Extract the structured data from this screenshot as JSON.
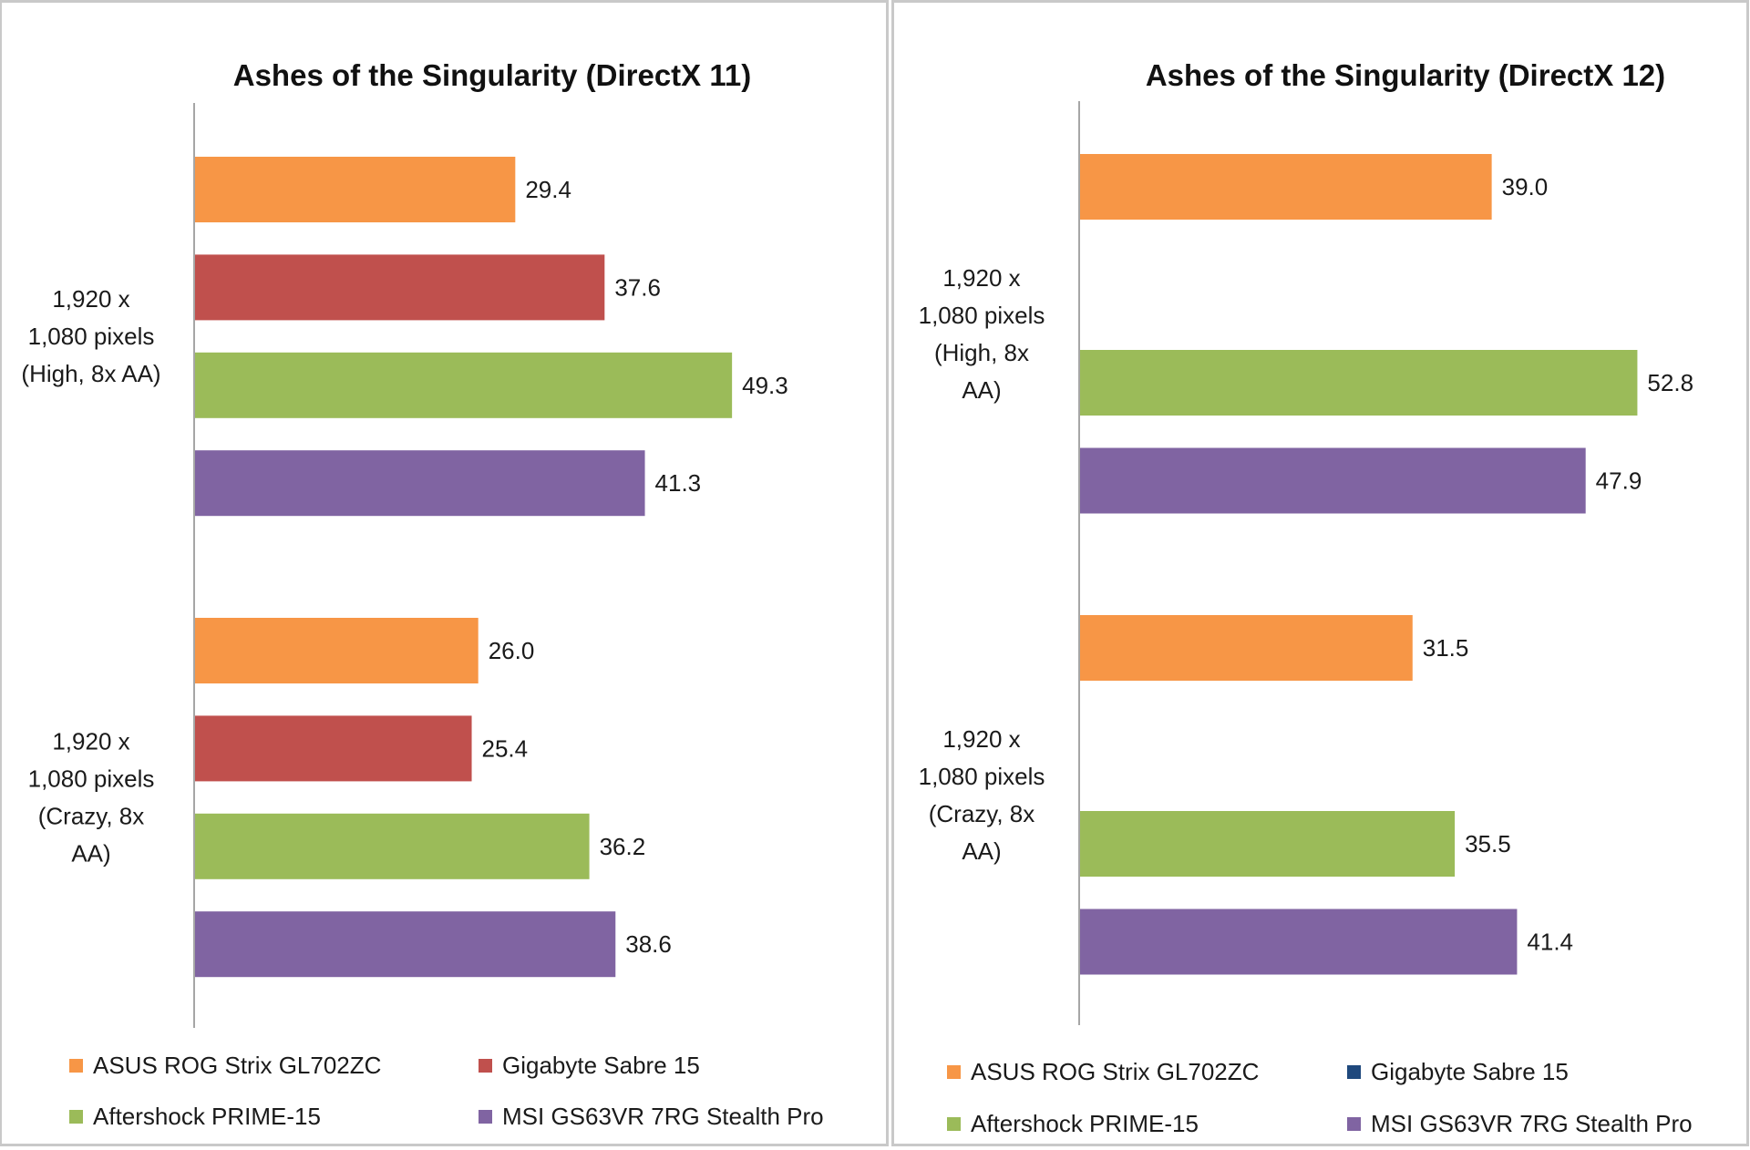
{
  "chart_data": [
    {
      "type": "bar",
      "orientation": "horizontal",
      "title": "Ashes of the Singularity (DirectX 11)",
      "xlabel": "",
      "ylabel": "",
      "grid": false,
      "value_axis_visible": false,
      "xlim": [
        0,
        63
      ],
      "categories": [
        "1,920 x 1,080 pixels (High, 8x AA)",
        "1,920 x 1,080 pixels (Crazy, 8x AA)"
      ],
      "category_label_lines": [
        [
          "1,920 x",
          "1,080 pixels",
          "(High, 8x AA)"
        ],
        [
          "1,920 x",
          "1,080 pixels",
          "(Crazy, 8x",
          "AA)"
        ]
      ],
      "series": [
        {
          "name": "ASUS ROG Strix GL702ZC",
          "color": "#f79646",
          "values": [
            29.4,
            26.0
          ],
          "labels": [
            "29.4",
            "26.0"
          ]
        },
        {
          "name": "Gigabyte Sabre 15",
          "color": "#c0504d",
          "values": [
            37.6,
            25.4
          ],
          "labels": [
            "37.6",
            "25.4"
          ]
        },
        {
          "name": "Aftershock PRIME-15",
          "color": "#9bbb59",
          "values": [
            49.3,
            36.2
          ],
          "labels": [
            "49.3",
            "36.2"
          ]
        },
        {
          "name": "MSI GS63VR 7RG Stealth Pro",
          "color": "#8064a2",
          "values": [
            41.3,
            38.6
          ],
          "labels": [
            "41.3",
            "38.6"
          ]
        }
      ],
      "legend": {
        "position": "bottom",
        "items": [
          {
            "name": "ASUS ROG Strix GL702ZC",
            "color": "#f79646"
          },
          {
            "name": "Gigabyte Sabre 15",
            "color": "#c0504d"
          },
          {
            "name": "Aftershock PRIME-15",
            "color": "#9bbb59"
          },
          {
            "name": "MSI GS63VR 7RG Stealth Pro",
            "color": "#8064a2"
          }
        ]
      }
    },
    {
      "type": "bar",
      "orientation": "horizontal",
      "title": "Ashes of the Singularity (DirectX 12)",
      "xlabel": "",
      "ylabel": "",
      "grid": false,
      "value_axis_visible": false,
      "xlim": [
        0,
        63
      ],
      "categories": [
        "1,920 x 1,080 pixels (High, 8x AA)",
        "1,920 x 1,080 pixels (Crazy, 8x AA)"
      ],
      "category_label_lines": [
        [
          "1,920 x",
          "1,080 pixels",
          "(High, 8x",
          "AA)"
        ],
        [
          "1,920 x",
          "1,080 pixels",
          "(Crazy, 8x",
          "AA)"
        ]
      ],
      "series": [
        {
          "name": "ASUS ROG Strix GL702ZC",
          "color": "#f79646",
          "values": [
            39.0,
            31.5
          ],
          "labels": [
            "39.0",
            "31.5"
          ]
        },
        {
          "name": "Gigabyte Sabre 15",
          "color": "#1f497d",
          "values": [
            null,
            null
          ],
          "labels": [
            null,
            null
          ]
        },
        {
          "name": "Aftershock PRIME-15",
          "color": "#9bbb59",
          "values": [
            52.8,
            35.5
          ],
          "labels": [
            "52.8",
            "35.5"
          ]
        },
        {
          "name": "MSI GS63VR 7RG Stealth Pro",
          "color": "#8064a2",
          "values": [
            47.9,
            41.4
          ],
          "labels": [
            "47.9",
            "41.4"
          ]
        }
      ],
      "legend": {
        "position": "bottom",
        "items": [
          {
            "name": "ASUS ROG Strix GL702ZC",
            "color": "#f79646"
          },
          {
            "name": "Gigabyte Sabre 15",
            "color": "#1f497d"
          },
          {
            "name": "Aftershock PRIME-15",
            "color": "#9bbb59"
          },
          {
            "name": "MSI GS63VR 7RG Stealth Pro",
            "color": "#8064a2"
          }
        ]
      }
    }
  ]
}
